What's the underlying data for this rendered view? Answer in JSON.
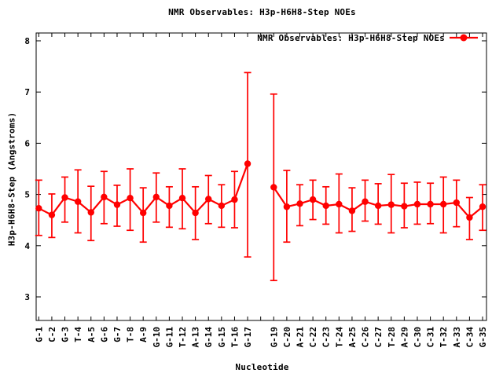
{
  "title": "NMR Observables: H3p-H6H8-Step NOEs",
  "legend": {
    "label": "NMR Observables: H3p-H6H8-Step NOEs",
    "position": "top-right-inside"
  },
  "colors": {
    "series": "#ff0000",
    "foreground": "#000000",
    "background": "#ffffff"
  },
  "chart_data": {
    "type": "line",
    "title": "NMR Observables: H3p-H6H8-Step NOEs",
    "xlabel": "Nucleotide",
    "ylabel": "H3p-H6H8-Step (Angstroms)",
    "grid": false,
    "legend_position": "top-right inside plot",
    "ylim": [
      2.54,
      8.153
    ],
    "xlim": [
      0.8,
      35.3
    ],
    "y_ticks": [
      {
        "pos": 3,
        "label": "3"
      },
      {
        "pos": 4,
        "label": "4"
      },
      {
        "pos": 5,
        "label": "5"
      },
      {
        "pos": 6,
        "label": "6"
      },
      {
        "pos": 7,
        "label": "7"
      },
      {
        "pos": 8,
        "label": "8"
      }
    ],
    "x_ticks": [
      {
        "pos": 1,
        "label": "G-1"
      },
      {
        "pos": 2,
        "label": "C-2"
      },
      {
        "pos": 3,
        "label": "G-3"
      },
      {
        "pos": 4,
        "label": "T-4"
      },
      {
        "pos": 5,
        "label": "A-5"
      },
      {
        "pos": 6,
        "label": "G-6"
      },
      {
        "pos": 7,
        "label": "G-7"
      },
      {
        "pos": 8,
        "label": "T-8"
      },
      {
        "pos": 9,
        "label": "A-9"
      },
      {
        "pos": 10,
        "label": "G-10"
      },
      {
        "pos": 11,
        "label": "G-11"
      },
      {
        "pos": 12,
        "label": "T-12"
      },
      {
        "pos": 13,
        "label": "A-13"
      },
      {
        "pos": 14,
        "label": "G-14"
      },
      {
        "pos": 15,
        "label": "G-15"
      },
      {
        "pos": 16,
        "label": "T-16"
      },
      {
        "pos": 17,
        "label": "G-17"
      },
      {
        "pos": 18,
        "label": ""
      },
      {
        "pos": 19,
        "label": "G-19"
      },
      {
        "pos": 20,
        "label": "C-20"
      },
      {
        "pos": 21,
        "label": "A-21"
      },
      {
        "pos": 22,
        "label": "C-22"
      },
      {
        "pos": 23,
        "label": "C-23"
      },
      {
        "pos": 24,
        "label": "T-24"
      },
      {
        "pos": 25,
        "label": "A-25"
      },
      {
        "pos": 26,
        "label": "C-26"
      },
      {
        "pos": 27,
        "label": "C-27"
      },
      {
        "pos": 28,
        "label": "T-28"
      },
      {
        "pos": 29,
        "label": "A-29"
      },
      {
        "pos": 30,
        "label": "C-30"
      },
      {
        "pos": 31,
        "label": "C-31"
      },
      {
        "pos": 32,
        "label": "T-32"
      },
      {
        "pos": 33,
        "label": "A-33"
      },
      {
        "pos": 34,
        "label": "C-34"
      },
      {
        "pos": 35,
        "label": "G-35"
      }
    ],
    "series": [
      {
        "name": "NMR Observables: H3p-H6H8-Step NOEs",
        "color": "#ff0000",
        "marker": "filled-circle",
        "style": "line with symmetric error bars, line broken at missing nucleotide 18",
        "points": [
          {
            "x": 1,
            "label": "G-1",
            "y": 4.73,
            "y_lo": 4.2,
            "y_hi": 5.28
          },
          {
            "x": 2,
            "label": "C-2",
            "y": 4.6,
            "y_lo": 4.16,
            "y_hi": 5.01
          },
          {
            "x": 3,
            "label": "G-3",
            "y": 4.94,
            "y_lo": 4.46,
            "y_hi": 5.34
          },
          {
            "x": 4,
            "label": "T-4",
            "y": 4.86,
            "y_lo": 4.25,
            "y_hi": 5.48
          },
          {
            "x": 5,
            "label": "A-5",
            "y": 4.65,
            "y_lo": 4.1,
            "y_hi": 5.16
          },
          {
            "x": 6,
            "label": "G-6",
            "y": 4.95,
            "y_lo": 4.43,
            "y_hi": 5.45
          },
          {
            "x": 7,
            "label": "G-7",
            "y": 4.8,
            "y_lo": 4.38,
            "y_hi": 5.18
          },
          {
            "x": 8,
            "label": "T-8",
            "y": 4.93,
            "y_lo": 4.3,
            "y_hi": 5.5
          },
          {
            "x": 9,
            "label": "A-9",
            "y": 4.64,
            "y_lo": 4.07,
            "y_hi": 5.13
          },
          {
            "x": 10,
            "label": "G-10",
            "y": 4.95,
            "y_lo": 4.46,
            "y_hi": 5.42
          },
          {
            "x": 11,
            "label": "G-11",
            "y": 4.78,
            "y_lo": 4.36,
            "y_hi": 5.15
          },
          {
            "x": 12,
            "label": "T-12",
            "y": 4.93,
            "y_lo": 4.33,
            "y_hi": 5.5
          },
          {
            "x": 13,
            "label": "A-13",
            "y": 4.64,
            "y_lo": 4.12,
            "y_hi": 5.15
          },
          {
            "x": 14,
            "label": "G-14",
            "y": 4.91,
            "y_lo": 4.43,
            "y_hi": 5.37
          },
          {
            "x": 15,
            "label": "G-15",
            "y": 4.78,
            "y_lo": 4.36,
            "y_hi": 5.19
          },
          {
            "x": 16,
            "label": "T-16",
            "y": 4.9,
            "y_lo": 4.35,
            "y_hi": 5.45
          },
          {
            "x": 17,
            "label": "G-17",
            "y": 5.6,
            "y_lo": 3.78,
            "y_hi": 7.38
          },
          {
            "x": 19,
            "label": "G-19",
            "y": 5.14,
            "y_lo": 3.32,
            "y_hi": 6.96
          },
          {
            "x": 20,
            "label": "C-20",
            "y": 4.76,
            "y_lo": 4.07,
            "y_hi": 5.47
          },
          {
            "x": 21,
            "label": "A-21",
            "y": 4.82,
            "y_lo": 4.39,
            "y_hi": 5.19
          },
          {
            "x": 22,
            "label": "C-22",
            "y": 4.9,
            "y_lo": 4.51,
            "y_hi": 5.28
          },
          {
            "x": 23,
            "label": "C-23",
            "y": 4.78,
            "y_lo": 4.42,
            "y_hi": 5.15
          },
          {
            "x": 24,
            "label": "T-24",
            "y": 4.81,
            "y_lo": 4.25,
            "y_hi": 5.4
          },
          {
            "x": 25,
            "label": "A-25",
            "y": 4.68,
            "y_lo": 4.28,
            "y_hi": 5.13
          },
          {
            "x": 26,
            "label": "C-26",
            "y": 4.86,
            "y_lo": 4.48,
            "y_hi": 5.28
          },
          {
            "x": 27,
            "label": "C-27",
            "y": 4.78,
            "y_lo": 4.42,
            "y_hi": 5.21
          },
          {
            "x": 28,
            "label": "T-28",
            "y": 4.8,
            "y_lo": 4.25,
            "y_hi": 5.39
          },
          {
            "x": 29,
            "label": "A-29",
            "y": 4.77,
            "y_lo": 4.35,
            "y_hi": 5.22
          },
          {
            "x": 30,
            "label": "C-30",
            "y": 4.81,
            "y_lo": 4.42,
            "y_hi": 5.24
          },
          {
            "x": 31,
            "label": "C-31",
            "y": 4.81,
            "y_lo": 4.43,
            "y_hi": 5.22
          },
          {
            "x": 32,
            "label": "T-32",
            "y": 4.81,
            "y_lo": 4.25,
            "y_hi": 5.34
          },
          {
            "x": 33,
            "label": "A-33",
            "y": 4.84,
            "y_lo": 4.37,
            "y_hi": 5.28
          },
          {
            "x": 34,
            "label": "C-34",
            "y": 4.55,
            "y_lo": 4.12,
            "y_hi": 4.94
          },
          {
            "x": 35,
            "label": "G-35",
            "y": 4.76,
            "y_lo": 4.3,
            "y_hi": 5.19
          }
        ]
      }
    ]
  }
}
